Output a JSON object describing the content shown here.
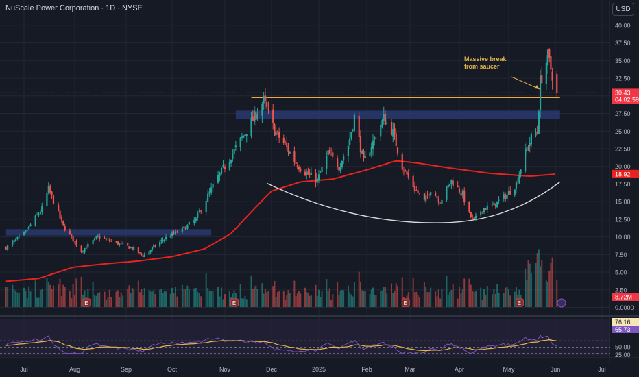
{
  "chart_title": "NuScale Power Corporation · 1D · NYSE",
  "currency_button": "USD",
  "colors": {
    "up": "#26a69a",
    "down": "#ef5350",
    "ma": "#e8231f",
    "annotation": "#e0b44a",
    "rsi": "#7e57c2",
    "rsi_ma": "#e6b94a"
  },
  "chart_data": {
    "type": "candlestick",
    "symbol": "NuScale Power Corporation",
    "interval": "1D",
    "exchange": "NYSE",
    "price_axis": {
      "ticks": [
        "40.00",
        "37.50",
        "35.00",
        "32.50",
        "30.00",
        "27.50",
        "25.00",
        "22.50",
        "20.00",
        "17.50",
        "15.00",
        "12.50",
        "10.00",
        "7.50",
        "5.00",
        "2.50",
        "0.0000"
      ],
      "range": [
        0,
        41.5
      ]
    },
    "time_axis": [
      "Jul",
      "Aug",
      "Sep",
      "Oct",
      "Nov",
      "Dec",
      "2025",
      "Feb",
      "Mar",
      "Apr",
      "May",
      "Jun",
      "Jul"
    ],
    "price_anchors": [
      [
        "2024-06-20",
        8.5
      ],
      [
        "2024-07-01",
        10.4
      ],
      [
        "2024-07-12",
        14.0
      ],
      [
        "2024-07-16",
        16.8
      ],
      [
        "2024-07-25",
        11.5
      ],
      [
        "2024-08-05",
        8.0
      ],
      [
        "2024-08-15",
        10.0
      ],
      [
        "2024-09-05",
        8.4
      ],
      [
        "2024-09-12",
        7.3
      ],
      [
        "2024-09-25",
        9.6
      ],
      [
        "2024-10-08",
        11.2
      ],
      [
        "2024-10-15",
        12.5
      ],
      [
        "2024-10-18",
        14.0
      ],
      [
        "2024-10-28",
        18.5
      ],
      [
        "2024-11-05",
        21.5
      ],
      [
        "2024-11-12",
        24.0
      ],
      [
        "2024-11-20",
        27.0
      ],
      [
        "2024-11-26",
        29.3
      ],
      [
        "2024-12-03",
        25.0
      ],
      [
        "2024-12-10",
        23.0
      ],
      [
        "2024-12-17",
        20.5
      ],
      [
        "2024-12-24",
        19.0
      ],
      [
        "2024-12-31",
        18.0
      ],
      [
        "2025-01-07",
        21.8
      ],
      [
        "2025-01-14",
        20.0
      ],
      [
        "2025-01-20",
        23.0
      ],
      [
        "2025-01-24",
        27.0
      ],
      [
        "2025-01-30",
        20.5
      ],
      [
        "2025-02-05",
        23.5
      ],
      [
        "2025-02-12",
        26.8
      ],
      [
        "2025-02-18",
        24.8
      ],
      [
        "2025-02-24",
        20.0
      ],
      [
        "2025-03-03",
        17.2
      ],
      [
        "2025-03-10",
        15.0
      ],
      [
        "2025-03-14",
        16.8
      ],
      [
        "2025-03-20",
        15.0
      ],
      [
        "2025-03-27",
        18.0
      ],
      [
        "2025-04-03",
        16.0
      ],
      [
        "2025-04-07",
        13.2
      ],
      [
        "2025-04-10",
        12.3
      ],
      [
        "2025-04-15",
        14.0
      ],
      [
        "2025-04-22",
        14.5
      ],
      [
        "2025-04-30",
        16.0
      ],
      [
        "2025-05-06",
        17.5
      ],
      [
        "2025-05-09",
        19.8
      ],
      [
        "2025-05-13",
        22.5
      ],
      [
        "2025-05-16",
        24.0
      ],
      [
        "2025-05-20",
        25.0
      ],
      [
        "2025-05-22",
        32.0
      ],
      [
        "2025-05-27",
        35.5
      ],
      [
        "2025-05-30",
        33.0
      ],
      [
        "2025-06-02",
        30.43
      ]
    ],
    "ma_anchors": [
      [
        "2024-06-20",
        3.7
      ],
      [
        "2024-07-10",
        4.1
      ],
      [
        "2024-07-31",
        5.7
      ],
      [
        "2024-08-20",
        6.2
      ],
      [
        "2024-09-10",
        6.6
      ],
      [
        "2024-10-01",
        7.2
      ],
      [
        "2024-10-20",
        8.3
      ],
      [
        "2024-11-05",
        10.5
      ],
      [
        "2024-11-20",
        14.0
      ],
      [
        "2024-12-01",
        16.5
      ],
      [
        "2024-12-20",
        17.8
      ],
      [
        "2025-01-10",
        18.2
      ],
      [
        "2025-02-01",
        19.5
      ],
      [
        "2025-02-20",
        20.8
      ],
      [
        "2025-03-05",
        20.5
      ],
      [
        "2025-03-25",
        19.8
      ],
      [
        "2025-04-20",
        19.0
      ],
      [
        "2025-05-15",
        18.6
      ],
      [
        "2025-06-02",
        18.92
      ]
    ],
    "saucer": {
      "start": [
        "2024-11-28",
        17.6
      ],
      "bottom": [
        "2025-03-18",
        12.0
      ],
      "end": [
        "2025-06-04",
        17.8
      ]
    },
    "zones": [
      {
        "from": "2024-06-20",
        "to": "2024-10-24",
        "low": 10.2,
        "high": 11.1
      },
      {
        "from": "2024-11-08",
        "to": "2025-06-04",
        "low": 26.7,
        "high": 27.9
      }
    ],
    "resistance": {
      "from": "2024-11-18",
      "to": "2025-06-04",
      "value": 29.75
    },
    "current_price_line": 30.43,
    "price_label": "30.43",
    "countdown": "04:02:59",
    "ma_label": "18.92",
    "volume_label": "8.72M",
    "annotation": "Massive break\nfrom saucer",
    "rsi": {
      "ticks": [
        "76.16",
        "65.73",
        "50.00",
        "25.00"
      ],
      "value": 65.73,
      "ma_value": 76.16,
      "levels": [
        70,
        50,
        30
      ]
    }
  }
}
